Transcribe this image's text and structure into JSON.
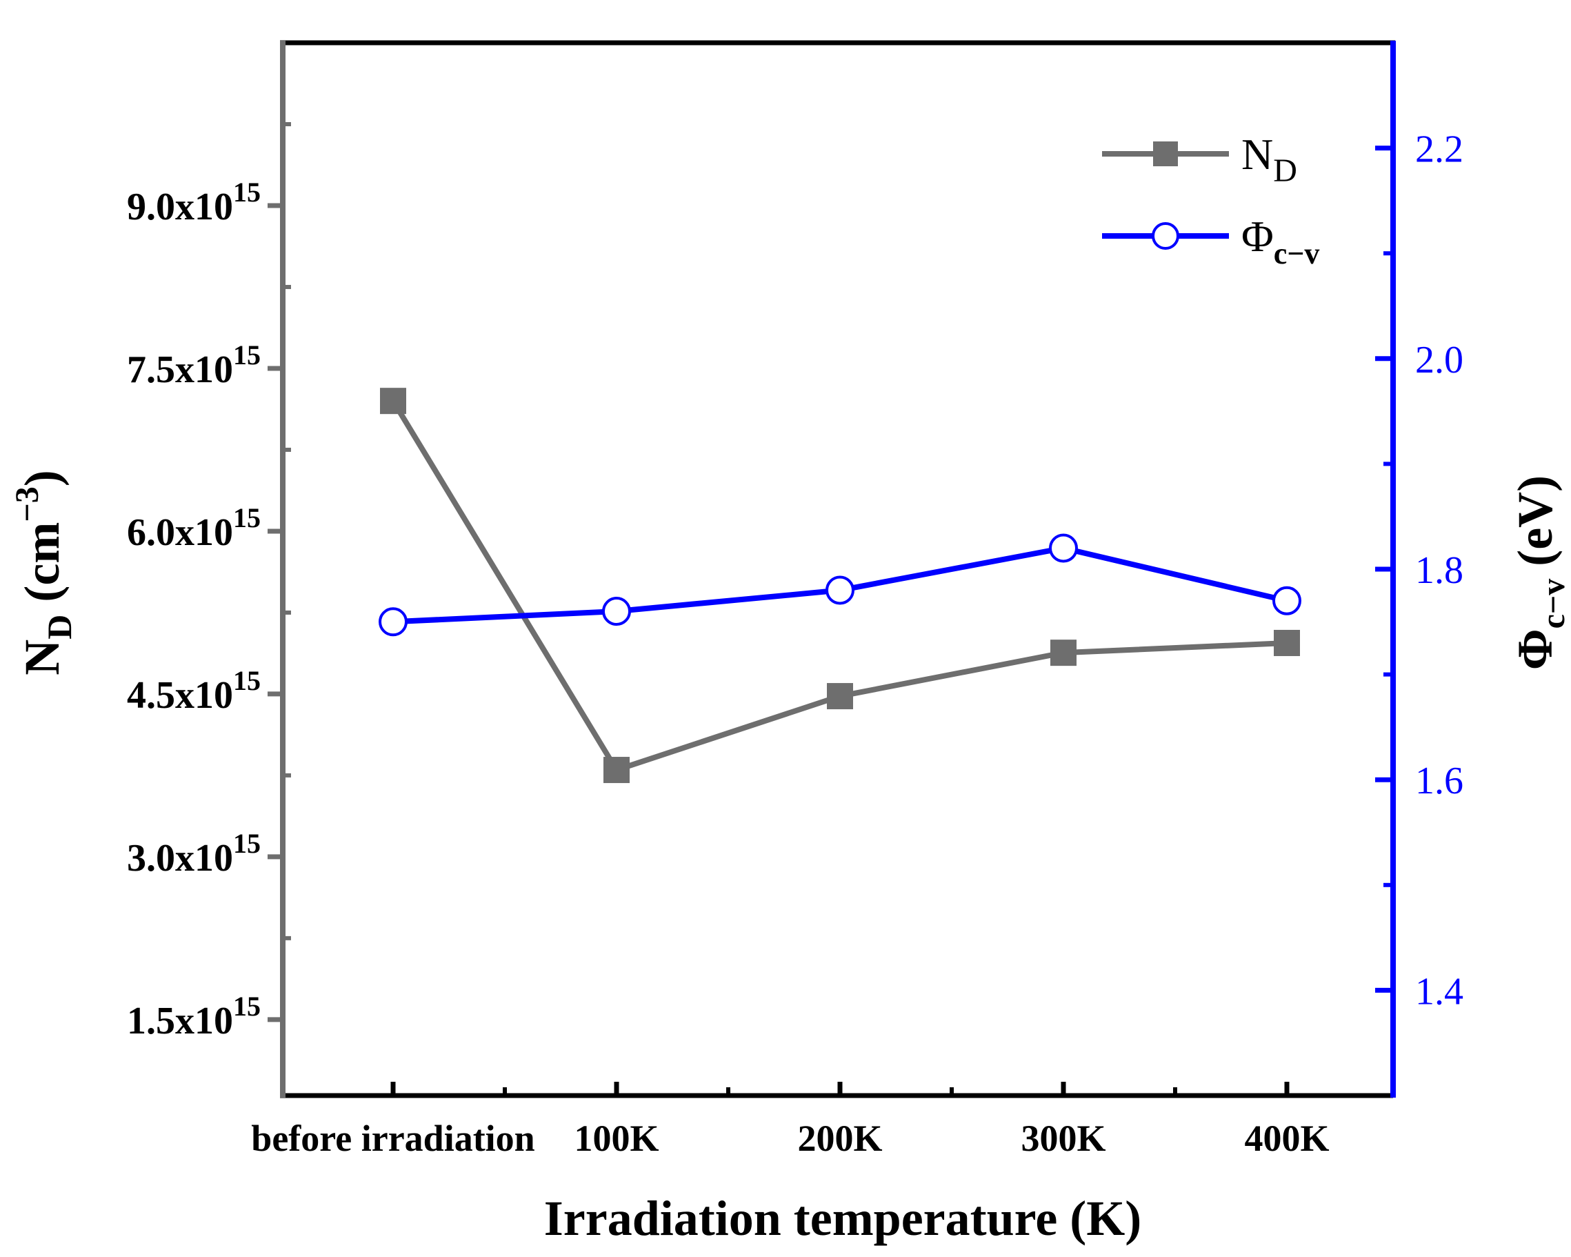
{
  "chart_data": {
    "type": "line",
    "title": "",
    "xlabel": "Irradiation temperature (K)",
    "categories": [
      "before irradiation",
      "100K",
      "200K",
      "300K",
      "400K"
    ],
    "y_left": {
      "label_main": "N",
      "label_sub": "D",
      "label_unit_open": " (cm",
      "label_sup": "−3",
      "label_unit_close": ")",
      "range": [
        800000000000000.0,
        1.05e+16
      ],
      "ticks": [
        1500000000000000.0,
        3000000000000000.0,
        4500000000000000.0,
        6000000000000000.0,
        7500000000000000.0,
        9000000000000000.0
      ],
      "tick_labels": [
        {
          "mant": "1.5x10",
          "exp": "15"
        },
        {
          "mant": "3.0x10",
          "exp": "15"
        },
        {
          "mant": "4.5x10",
          "exp": "15"
        },
        {
          "mant": "6.0x10",
          "exp": "15"
        },
        {
          "mant": "7.5x10",
          "exp": "15"
        },
        {
          "mant": "9.0x10",
          "exp": "15"
        }
      ],
      "color": "#6e6e6e"
    },
    "y_right": {
      "label_main": "Φ",
      "label_sub": "c−v",
      "label_unit": " (eV)",
      "range": [
        1.3,
        2.3
      ],
      "ticks": [
        1.4,
        1.6,
        1.8,
        2.0,
        2.2
      ],
      "tick_labels": [
        "1.4",
        "1.6",
        "1.8",
        "2.0",
        "2.2"
      ],
      "color": "#0000ff"
    },
    "series": [
      {
        "name": "N",
        "name_sub": "D",
        "axis": "left",
        "marker": "square",
        "color": "#6e6e6e",
        "values": [
          7200000000000000.0,
          3800000000000000.0,
          4480000000000000.0,
          4880000000000000.0,
          4970000000000000.0
        ]
      },
      {
        "name": "Φ",
        "name_sub": "c−v",
        "axis": "right",
        "marker": "circle-open",
        "color": "#0000ff",
        "values": [
          1.75,
          1.76,
          1.78,
          1.82,
          1.77
        ]
      }
    ],
    "legend_position": "top-right",
    "grid": false
  }
}
